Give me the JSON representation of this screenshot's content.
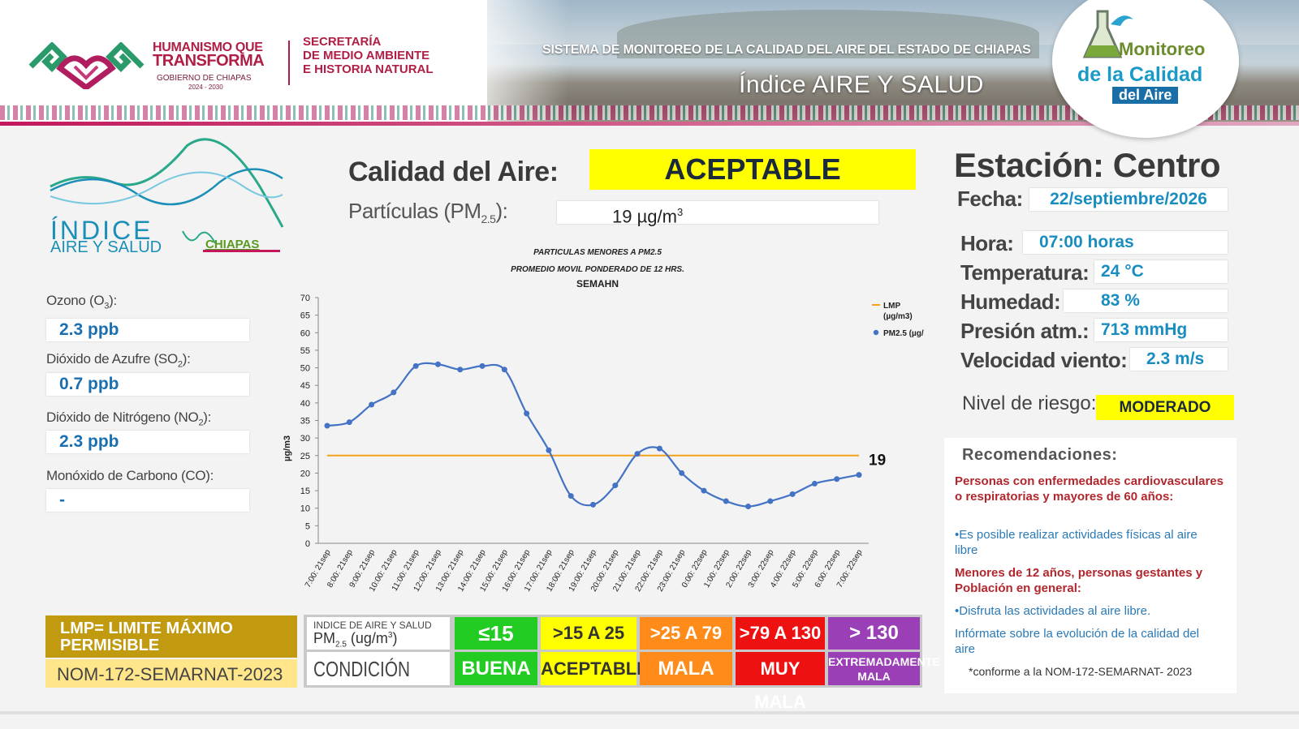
{
  "header": {
    "gov_line1": "HUMANISMO QUE",
    "gov_line2": "TRANSFORMA",
    "gov_line3": "GOBIERNO DE CHIAPAS",
    "gov_years": "2024 - 2030",
    "secretaria_lines": [
      "SECRETARÍA",
      "DE MEDIO AMBIENTE",
      "E HISTORIA NATURAL"
    ],
    "system_title": "SISTEMA DE MONITOREO DE LA CALIDAD DEL AIRE DEL ESTADO DE CHIAPAS",
    "index_title": "Índice AIRE Y SALUD",
    "logo_line1": "Monitoreo",
    "logo_line2": "de la Calidad",
    "logo_line3": "del Aire"
  },
  "index_logo": {
    "word1": "ÍNDICE",
    "word2": "AIRE Y SALUD",
    "state": "CHIAPAS"
  },
  "air_quality": {
    "label": "Calidad del Aire:",
    "value": "ACEPTABLE",
    "value_color": "#ffff00",
    "pm_label": "Partículas (PM",
    "pm_sub": "2.5",
    "pm_label_end": "):",
    "pm_value": "19 µg/m",
    "pm_value_sup": "3"
  },
  "gases": [
    {
      "label": "Ozono (O",
      "sub": "3",
      "end": "):",
      "value": "2.3 ppb"
    },
    {
      "label": "Dióxido de Azufre (SO",
      "sub": "2",
      "end": "):",
      "value": "0.7 ppb"
    },
    {
      "label": "Dióxido de Nitrógeno (NO",
      "sub": "2",
      "end": "):",
      "value": "2.3 ppb"
    },
    {
      "label": "Monóxido de Carbono (CO):",
      "sub": "",
      "end": "",
      "value": "-"
    }
  ],
  "station": {
    "title": "Estación: Centro",
    "fields": [
      {
        "label": "Fecha:",
        "value": "22/septiembre/2026"
      },
      {
        "label": "Hora:",
        "value": "07:00 horas"
      },
      {
        "label": "Temperatura:",
        "value": "24 °C"
      },
      {
        "label": "Humedad:",
        "value": "83 %"
      },
      {
        "label": "Presión atm.:",
        "value": "713 mmHg"
      },
      {
        "label": "Velocidad viento:",
        "value": "2.3 m/s"
      }
    ],
    "risk_label": "Nivel de riesgo:",
    "risk_value": "MODERADO",
    "risk_color": "#ffff00"
  },
  "recommendations": {
    "title": "Recomendaciones:",
    "group1": "Personas con enfermedades cardiovasculares o respiratorias y mayores de 60 años:",
    "item1": "•Es posible realizar actividades físicas al aire libre",
    "group2": "Menores de 12 años, personas gestantes y Población en general:",
    "item2": "•Disfruta las actividades al aire libre.",
    "item3": "Infórmate sobre la evolución de la calidad del aire",
    "note": "*conforme a la NOM-172-SEMARNAT- 2023"
  },
  "legend_box": {
    "lmp": "LMP= LIMITE MÁXIMO PERMISIBLE",
    "nom": "NOM-172-SEMARNAT-2023"
  },
  "index_table": {
    "header_line1": "INDICE DE AIRE Y SALUD",
    "header_line2": "PM",
    "header_sub": "2.5",
    "header_unit": " (ug/m",
    "header_sup": "3",
    "header_end": ")",
    "condition_label": "CONDICIÓN",
    "ranges": [
      {
        "range": "≤15",
        "condition": "BUENA",
        "color": "#22cc22"
      },
      {
        "range": ">15 A 25",
        "condition": "ACEPTABLE",
        "color": "#ffff00"
      },
      {
        "range": ">25 A 79",
        "condition": "MALA",
        "color": "#ff8c1a"
      },
      {
        "range": ">79 A 130",
        "condition": "MUY MALA",
        "color": "#ee1111"
      },
      {
        "range": "> 130",
        "condition": "EXTREMADAMENTE MALA",
        "color": "#9a3fb5"
      }
    ]
  },
  "chart_data": {
    "type": "line",
    "title_lines": [
      "PARTICULAS MENORES A PM2.5",
      "PROMEDIO MOVIL PONDERADO DE 12 HRS.",
      "SEMAHN"
    ],
    "ylabel": "µg/m3",
    "xlabel": "",
    "ylim": [
      0,
      70
    ],
    "ytick_step": 5,
    "grid": false,
    "legend_position": "top-right",
    "categories": [
      "7:00: 21sep",
      "8:00: 21sep",
      "9:00: 21sep",
      "10:00: 21sep",
      "11:00: 21sep",
      "12:00: 21sep",
      "13:00: 21sep",
      "14:00: 21sep",
      "15:00: 21sep",
      "16:00: 21sep",
      "17:00: 21sep",
      "18:00: 21sep",
      "19:00: 21sep",
      "20:00: 21sep",
      "21:00: 21sep",
      "22:00: 21sep",
      "23:00: 21sep",
      "0:00: 22sep",
      "1:00: 22sep",
      "2:00: 22sep",
      "3:00: 22sep",
      "4:00: 22sep",
      "5:00: 22sep",
      "6:00: 22sep",
      "7:00: 22sep"
    ],
    "series": [
      {
        "name": "LMP (µg/m3)",
        "kind": "constant",
        "value": 25,
        "color": "#f5a21b"
      },
      {
        "name": "PM2.5 (µg/",
        "kind": "line",
        "color": "#4472c4",
        "values": [
          33.5,
          34.5,
          39.5,
          43,
          50.5,
          51,
          49.5,
          50.5,
          49.5,
          37,
          26.5,
          13.5,
          11,
          16.5,
          25.5,
          27,
          20,
          15,
          12,
          10.5,
          12,
          14,
          17,
          18.3,
          19.5
        ]
      }
    ],
    "last_value_label": "19"
  }
}
